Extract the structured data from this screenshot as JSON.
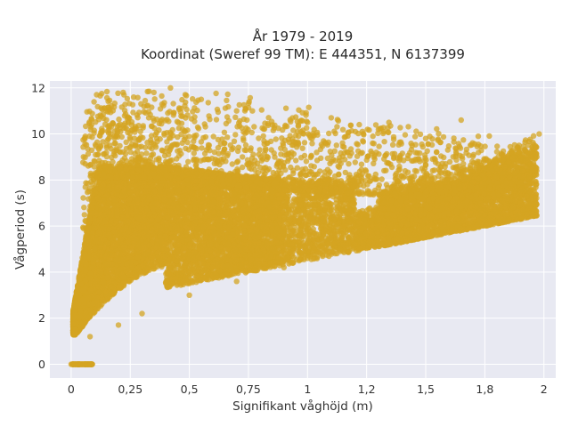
{
  "chart_data": {
    "type": "scatter",
    "title": "År 1979 - 2019",
    "subtitle": "Koordinat (Sweref 99 TM): E 444351, N 6137399",
    "xlabel": "Signifikant våghöjd (m)",
    "ylabel": "Vågperiod (s)",
    "xlim": [
      -0.09,
      2.05
    ],
    "ylim": [
      -0.6,
      12.3
    ],
    "x_ticks": [
      0,
      0.25,
      0.5,
      0.75,
      1,
      1.25,
      1.5,
      1.75,
      2
    ],
    "x_tick_labels": [
      "0",
      "0,25",
      "0,5",
      "0,75",
      "1",
      "1,2",
      "1,5",
      "1,8",
      "2"
    ],
    "y_ticks": [
      0,
      2,
      4,
      6,
      8,
      10,
      12
    ],
    "y_tick_labels": [
      "0",
      "2",
      "4",
      "6",
      "8",
      "10",
      "12"
    ],
    "grid": true,
    "legend": "none",
    "marker_color": "#d4a421",
    "plot_background": "#e8e9f2",
    "series": [
      {
        "values_sample": [
          {
            "x": 0.0,
            "y": 0.0
          },
          {
            "x": 0.03,
            "y": 0.0
          },
          {
            "x": 0.06,
            "y": 0.0
          },
          {
            "x": 0.08,
            "y": 0.0
          },
          {
            "x": 0.02,
            "y": 1.5
          },
          {
            "x": 0.05,
            "y": 2.8
          },
          {
            "x": 0.08,
            "y": 1.2
          },
          {
            "x": 0.1,
            "y": 3.5
          },
          {
            "x": 0.1,
            "y": 8.8
          },
          {
            "x": 0.15,
            "y": 9.5
          },
          {
            "x": 0.2,
            "y": 1.7
          },
          {
            "x": 0.22,
            "y": 11.8
          },
          {
            "x": 0.3,
            "y": 2.2
          },
          {
            "x": 0.35,
            "y": 11.8
          },
          {
            "x": 0.42,
            "y": 12.0
          },
          {
            "x": 0.5,
            "y": 3.0
          },
          {
            "x": 0.55,
            "y": 11.5
          },
          {
            "x": 0.7,
            "y": 3.6
          },
          {
            "x": 0.7,
            "y": 11.0
          },
          {
            "x": 0.9,
            "y": 4.2
          },
          {
            "x": 1.0,
            "y": 4.6
          },
          {
            "x": 1.0,
            "y": 10.5
          },
          {
            "x": 1.1,
            "y": 10.7
          },
          {
            "x": 1.2,
            "y": 5.2
          },
          {
            "x": 1.3,
            "y": 10.2
          },
          {
            "x": 1.4,
            "y": 5.7
          },
          {
            "x": 1.5,
            "y": 9.8
          },
          {
            "x": 1.6,
            "y": 6.1
          },
          {
            "x": 1.65,
            "y": 10.6
          },
          {
            "x": 1.75,
            "y": 6.5
          },
          {
            "x": 1.8,
            "y": 8.5
          },
          {
            "x": 1.9,
            "y": 7.0
          },
          {
            "x": 1.97,
            "y": 9.0
          },
          {
            "x": 1.98,
            "y": 10.0
          }
        ]
      }
    ]
  }
}
